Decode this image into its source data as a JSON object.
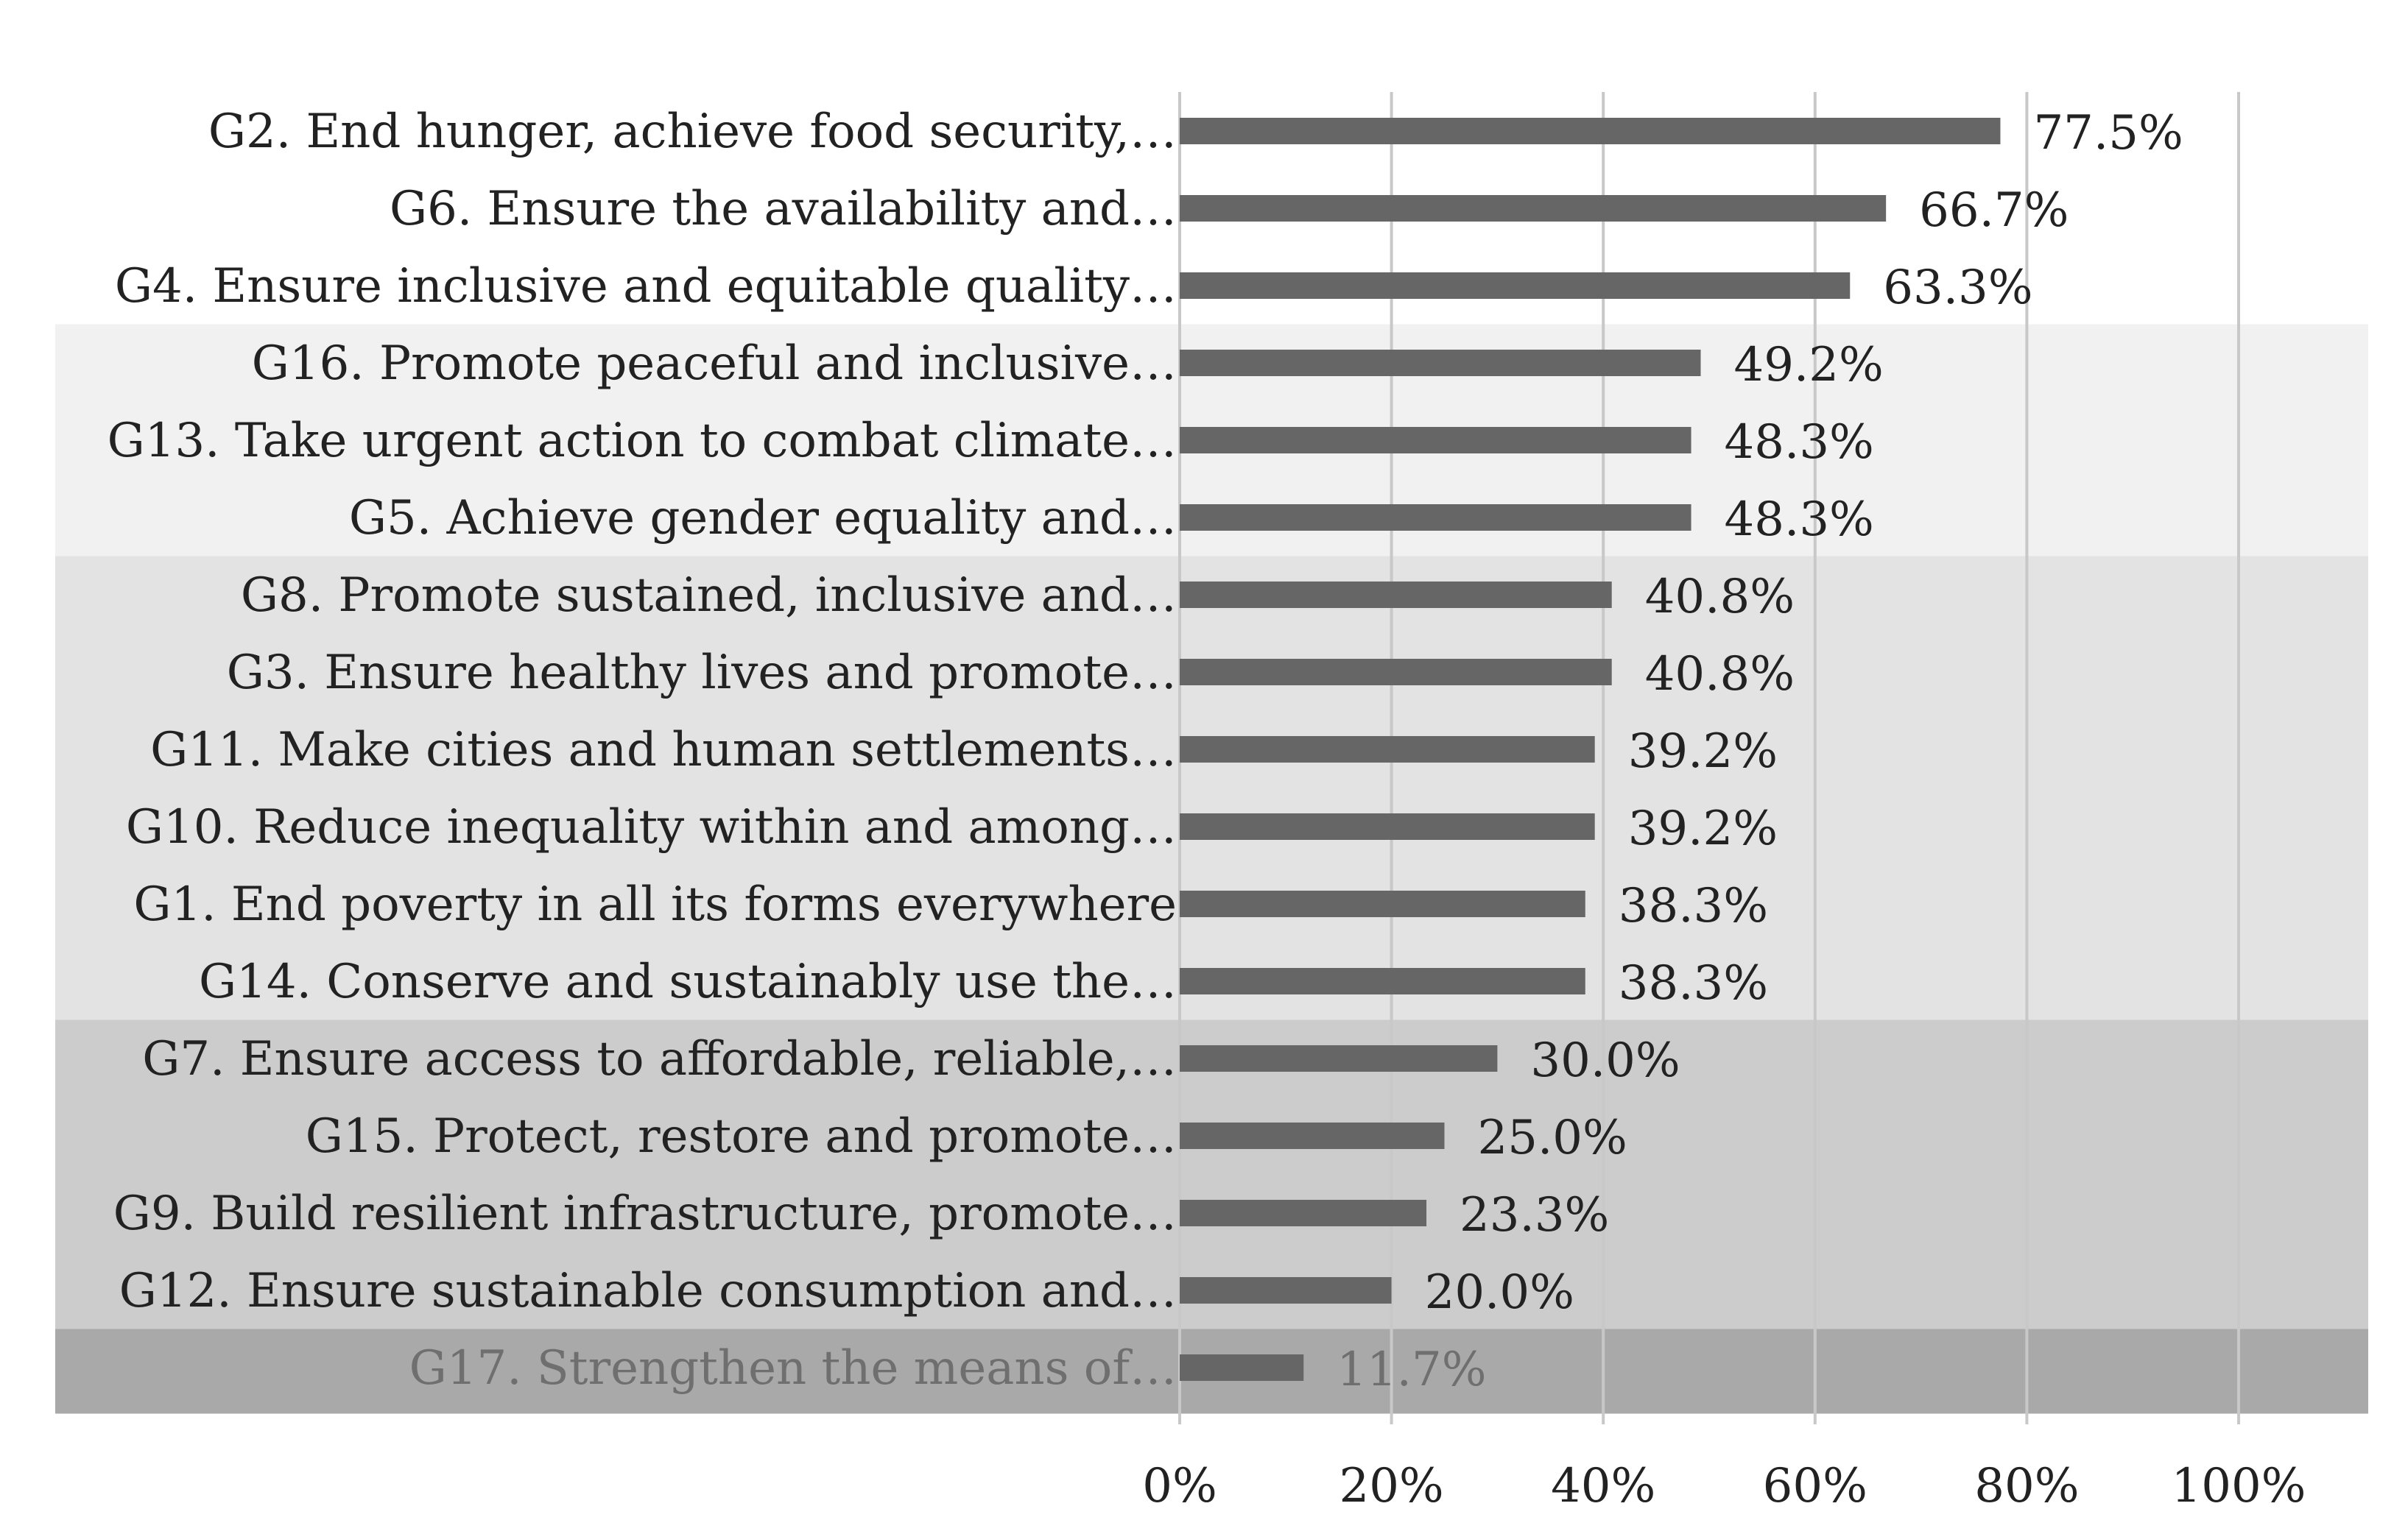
{
  "chart_data": {
    "type": "bar",
    "orientation": "horizontal",
    "title": "",
    "xlabel": "",
    "ylabel": "",
    "xlim": [
      0,
      100
    ],
    "grid": true,
    "legend": "none",
    "categories": [
      "G2. End hunger, achieve food security,…",
      "G6. Ensure the availability and…",
      "G4. Ensure inclusive and equitable quality…",
      "G16. Promote peaceful and inclusive…",
      "G13. Take urgent action to combat climate…",
      "G5. Achieve gender equality and…",
      "G8. Promote sustained, inclusive and…",
      "G3. Ensure healthy lives and promote…",
      "G11. Make cities and human settlements…",
      "G10. Reduce inequality within and among…",
      "G1. End poverty in all its forms everywhere",
      "G14. Conserve and sustainably use the…",
      "G7. Ensure access to affordable, reliable,…",
      "G15. Protect, restore and promote…",
      "G9. Build resilient infrastructure, promote…",
      "G12. Ensure sustainable consumption and…",
      "G17. Strengthen the means of…"
    ],
    "values": [
      77.5,
      66.7,
      63.3,
      49.2,
      48.3,
      48.3,
      40.8,
      40.8,
      39.2,
      39.2,
      38.3,
      38.3,
      30.0,
      25.0,
      23.3,
      20.0,
      11.7
    ],
    "value_labels": [
      "77.5%",
      "66.7%",
      "63.3%",
      "49.2%",
      "48.3%",
      "48.3%",
      "40.8%",
      "40.8%",
      "39.2%",
      "39.2%",
      "38.3%",
      "38.3%",
      "30.0%",
      "25.0%",
      "23.3%",
      "20.0%",
      "11.7%"
    ],
    "x_ticks": [
      0,
      20,
      40,
      60,
      80,
      100
    ],
    "x_tick_labels": [
      "0%",
      "20%",
      "40%",
      "60%",
      "80%",
      "100%"
    ],
    "bands": [
      {
        "name": "band-1",
        "first_index": 0,
        "last_index": 2,
        "color": "#ffffff"
      },
      {
        "name": "band-2",
        "first_index": 3,
        "last_index": 5,
        "color": "#f1f1f1"
      },
      {
        "name": "band-3",
        "first_index": 6,
        "last_index": 11,
        "color": "#e3e3e3"
      },
      {
        "name": "band-4",
        "first_index": 12,
        "last_index": 15,
        "color": "#cccccc"
      },
      {
        "name": "band-5",
        "first_index": 16,
        "last_index": 16,
        "color": "#a9a9a9"
      }
    ],
    "faded_categories": [
      16
    ],
    "bar_color": "#666666",
    "grid_color": "#c8c8c8"
  }
}
